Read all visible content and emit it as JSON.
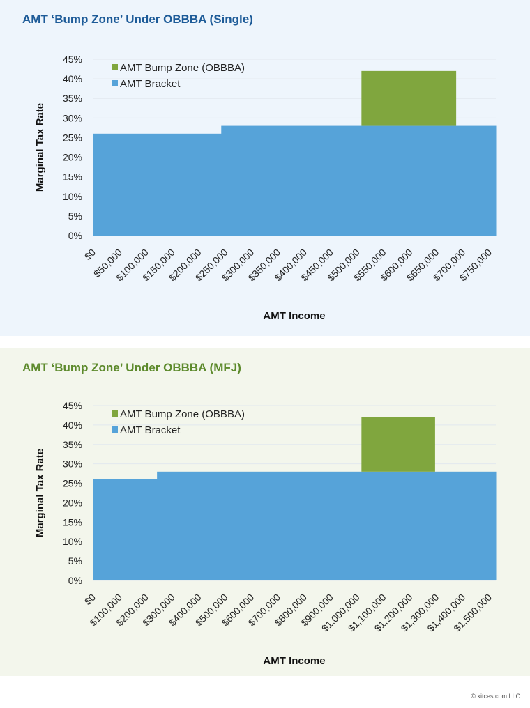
{
  "footer": "© kitces.com LLC",
  "colors": {
    "bracket": "#56a3d9",
    "bump": "#80a63e"
  },
  "chart_data": [
    {
      "type": "area",
      "title": "AMT ‘Bump Zone’ Under OBBBA (Single)",
      "xlabel": "AMT Income",
      "ylabel": "Marginal Tax Rate",
      "xlim": [
        0,
        750000
      ],
      "ylim": [
        0,
        45
      ],
      "yticks": [
        "0%",
        "5%",
        "10%",
        "15%",
        "20%",
        "25%",
        "30%",
        "35%",
        "40%",
        "45%"
      ],
      "xticks": [
        "$0",
        "$50,000",
        "$100,000",
        "$150,000",
        "$200,000",
        "$250,000",
        "$300,000",
        "$350,000",
        "$400,000",
        "$450,000",
        "$500,000",
        "$550,000",
        "$600,000",
        "$650,000",
        "$700,000",
        "$750,000"
      ],
      "legend": [
        "AMT Bump Zone (OBBBA)",
        "AMT Bracket"
      ],
      "legend_position": "top-left",
      "grid": true,
      "series": [
        {
          "name": "AMT Bracket",
          "segments": [
            {
              "from": 0,
              "to": 239100,
              "rate": 26
            },
            {
              "from": 239100,
              "to": 750000,
              "rate": 28
            }
          ]
        },
        {
          "name": "AMT Bump Zone (OBBBA)",
          "segments": [
            {
              "from": 500000,
              "to": 676200,
              "rate": 42
            }
          ]
        }
      ]
    },
    {
      "type": "area",
      "title": "AMT ‘Bump Zone’ Under OBBBA (MFJ)",
      "xlabel": "AMT Income",
      "ylabel": "Marginal Tax Rate",
      "xlim": [
        0,
        1500000
      ],
      "ylim": [
        0,
        45
      ],
      "yticks": [
        "0%",
        "5%",
        "10%",
        "15%",
        "20%",
        "25%",
        "30%",
        "35%",
        "40%",
        "45%"
      ],
      "xticks": [
        "$0",
        "$100,000",
        "$200,000",
        "$300,000",
        "$400,000",
        "$500,000",
        "$600,000",
        "$700,000",
        "$800,000",
        "$900,000",
        "$1,000,000",
        "$1,100,000",
        "$1,200,000",
        "$1,300,000",
        "$1,400,000",
        "$1,500,000"
      ],
      "legend": [
        "AMT Bump Zone (OBBBA)",
        "AMT Bracket"
      ],
      "legend_position": "top-left",
      "grid": true,
      "series": [
        {
          "name": "AMT Bracket",
          "segments": [
            {
              "from": 0,
              "to": 239100,
              "rate": 26
            },
            {
              "from": 239100,
              "to": 1500000,
              "rate": 28
            }
          ]
        },
        {
          "name": "AMT Bump Zone (OBBBA)",
          "segments": [
            {
              "from": 1000000,
              "to": 1274000,
              "rate": 42
            }
          ]
        }
      ]
    }
  ]
}
